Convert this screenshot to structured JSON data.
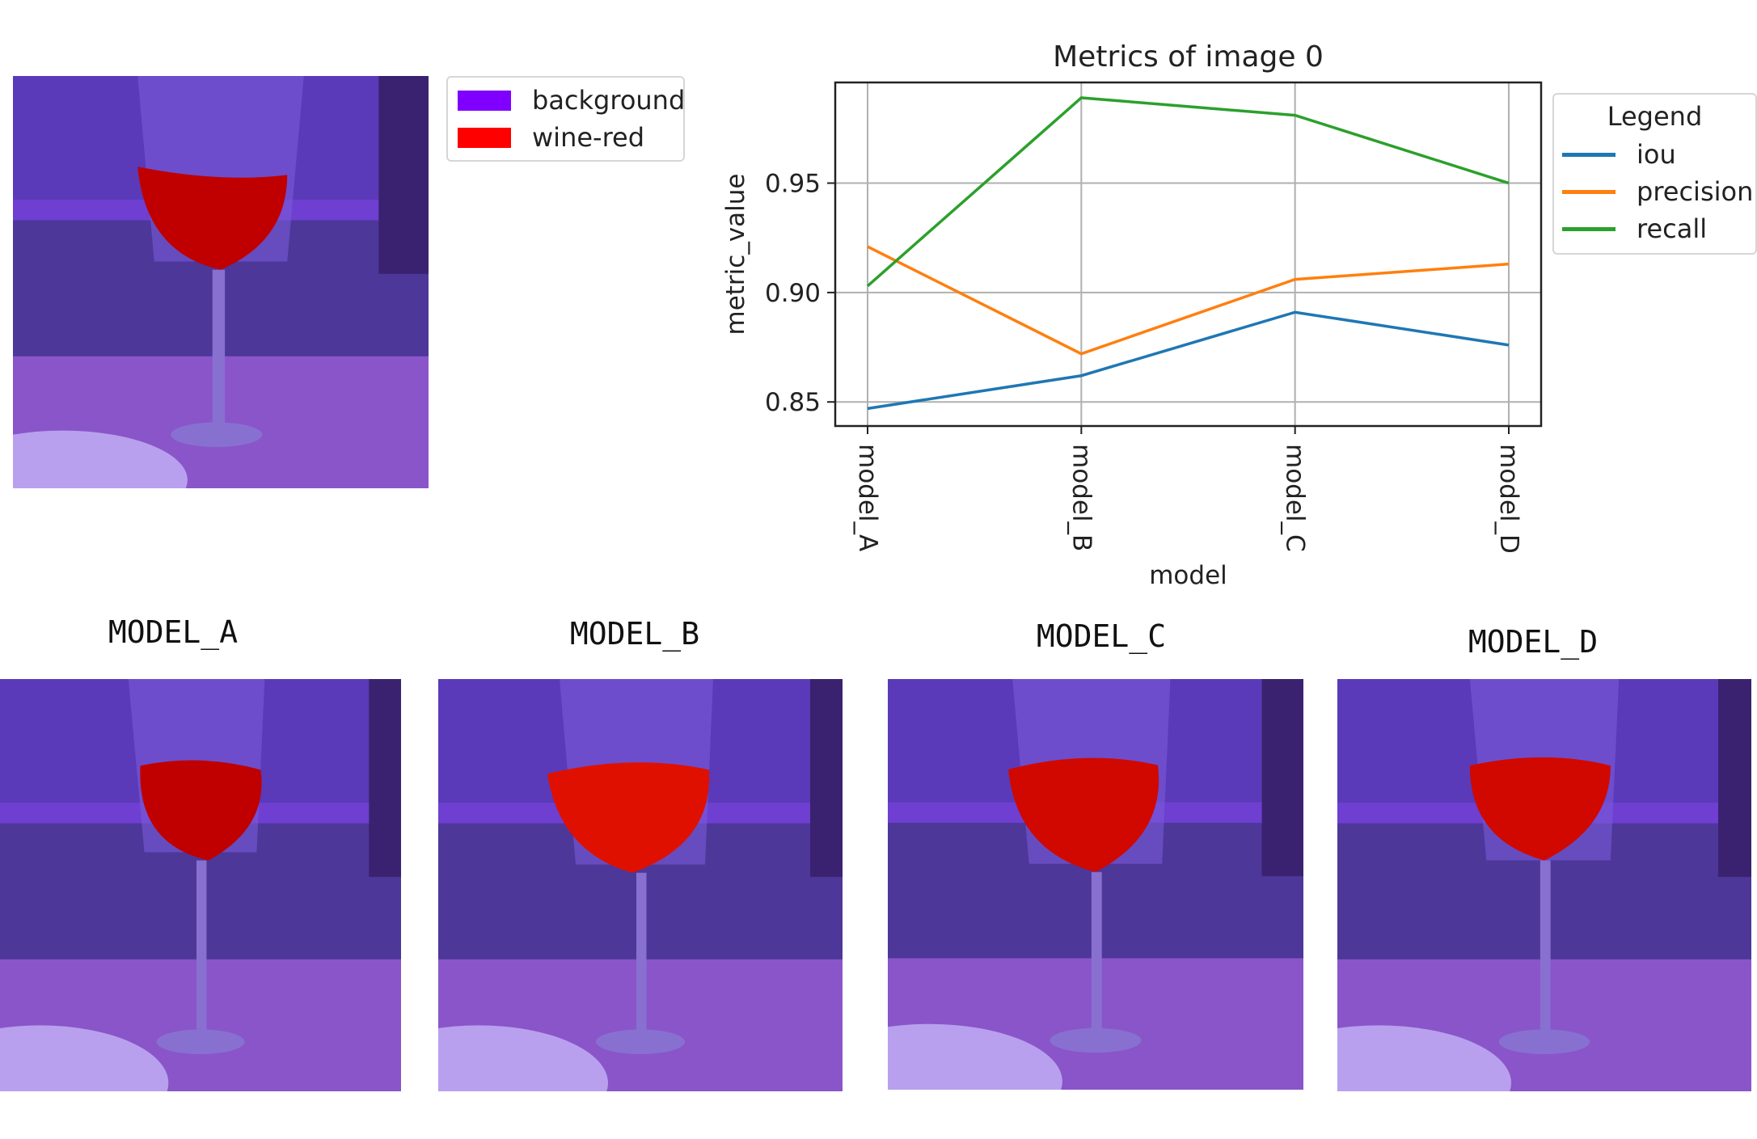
{
  "segmentation_legend": {
    "items": [
      {
        "label": "background",
        "color": "#8000ff"
      },
      {
        "label": "wine-red",
        "color": "#ff0000"
      }
    ]
  },
  "models": [
    {
      "title": "MODEL_A"
    },
    {
      "title": "MODEL_B"
    },
    {
      "title": "MODEL_C"
    },
    {
      "title": "MODEL_D"
    }
  ],
  "chart_data": {
    "type": "line",
    "title": "Metrics of image 0",
    "xlabel": "model",
    "ylabel": "metric_value",
    "categories": [
      "model_A",
      "model_B",
      "model_C",
      "model_D"
    ],
    "yticks": [
      0.85,
      0.9,
      0.95
    ],
    "ytick_labels": [
      "0.85",
      "0.90",
      "0.95"
    ],
    "ylim": [
      0.839,
      0.996
    ],
    "grid": true,
    "legend_title": "Legend",
    "legend_position": "outside right",
    "series": [
      {
        "name": "iou",
        "color": "#1f77b4",
        "values": [
          0.847,
          0.862,
          0.891,
          0.876
        ]
      },
      {
        "name": "precision",
        "color": "#ff7f0e",
        "values": [
          0.921,
          0.872,
          0.906,
          0.913
        ]
      },
      {
        "name": "recall",
        "color": "#2ca02c",
        "values": [
          0.903,
          0.989,
          0.981,
          0.95
        ]
      }
    ]
  }
}
